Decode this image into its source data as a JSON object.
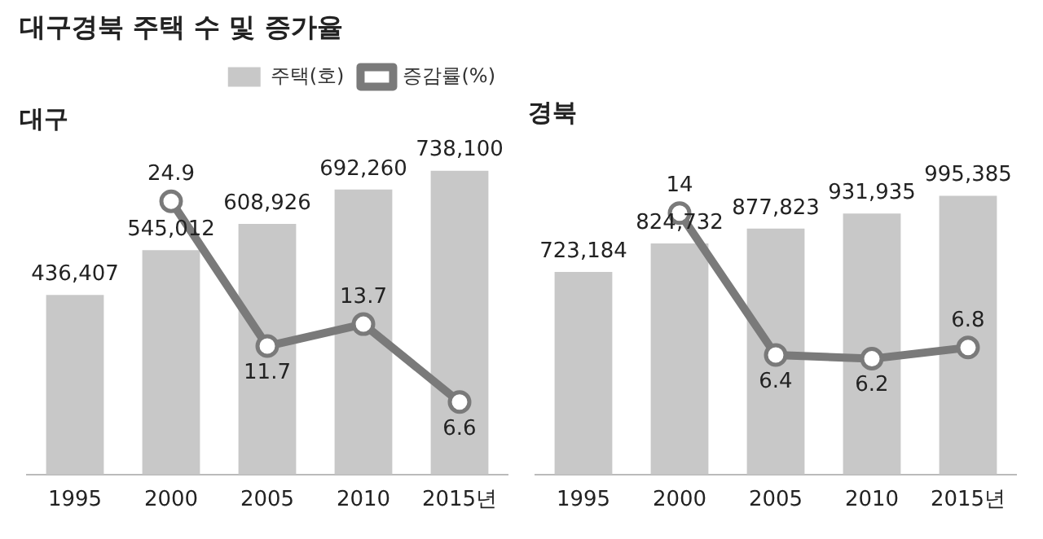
{
  "chart_data": [
    {
      "type": "bar",
      "title": "대구경북 주택 수 및 증가율",
      "subtitle": "대구",
      "categories": [
        "1995",
        "2000",
        "2005",
        "2010",
        "2015년"
      ],
      "series": [
        {
          "name": "주택(호)",
          "color": "#c8c8c8",
          "values": [
            436407,
            545012,
            608926,
            692260,
            738100
          ],
          "value_labels": [
            "436,407",
            "545,012",
            "608,926",
            "692,260",
            "738,100"
          ]
        },
        {
          "name": "증감률(%)",
          "type": "line",
          "axis": "y2",
          "color": "#7a7a7a",
          "values": [
            null,
            24.9,
            11.7,
            13.7,
            6.6
          ]
        }
      ],
      "tick_labels": "x",
      "data_labels": true,
      "legend": "top right",
      "marker": "circle",
      "grid": false
    },
    {
      "type": "bar",
      "subtitle": "경북",
      "categories": [
        "1995",
        "2000",
        "2005",
        "2010",
        "2015년"
      ],
      "series": [
        {
          "color": "#c8c8c8",
          "values": [
            723184,
            824732,
            877823,
            931935,
            995385
          ],
          "value_labels": [
            "723,184",
            "824,732",
            "877,823",
            "931,935",
            "995,385"
          ]
        },
        {
          "type": "line",
          "axis": "y2",
          "color": "#7a7a7a",
          "values": [
            null,
            14,
            6.4,
            6.2,
            6.8
          ]
        }
      ],
      "tick_labels": "x",
      "data_labels": true,
      "marker": "circle",
      "grid": false
    }
  ]
}
